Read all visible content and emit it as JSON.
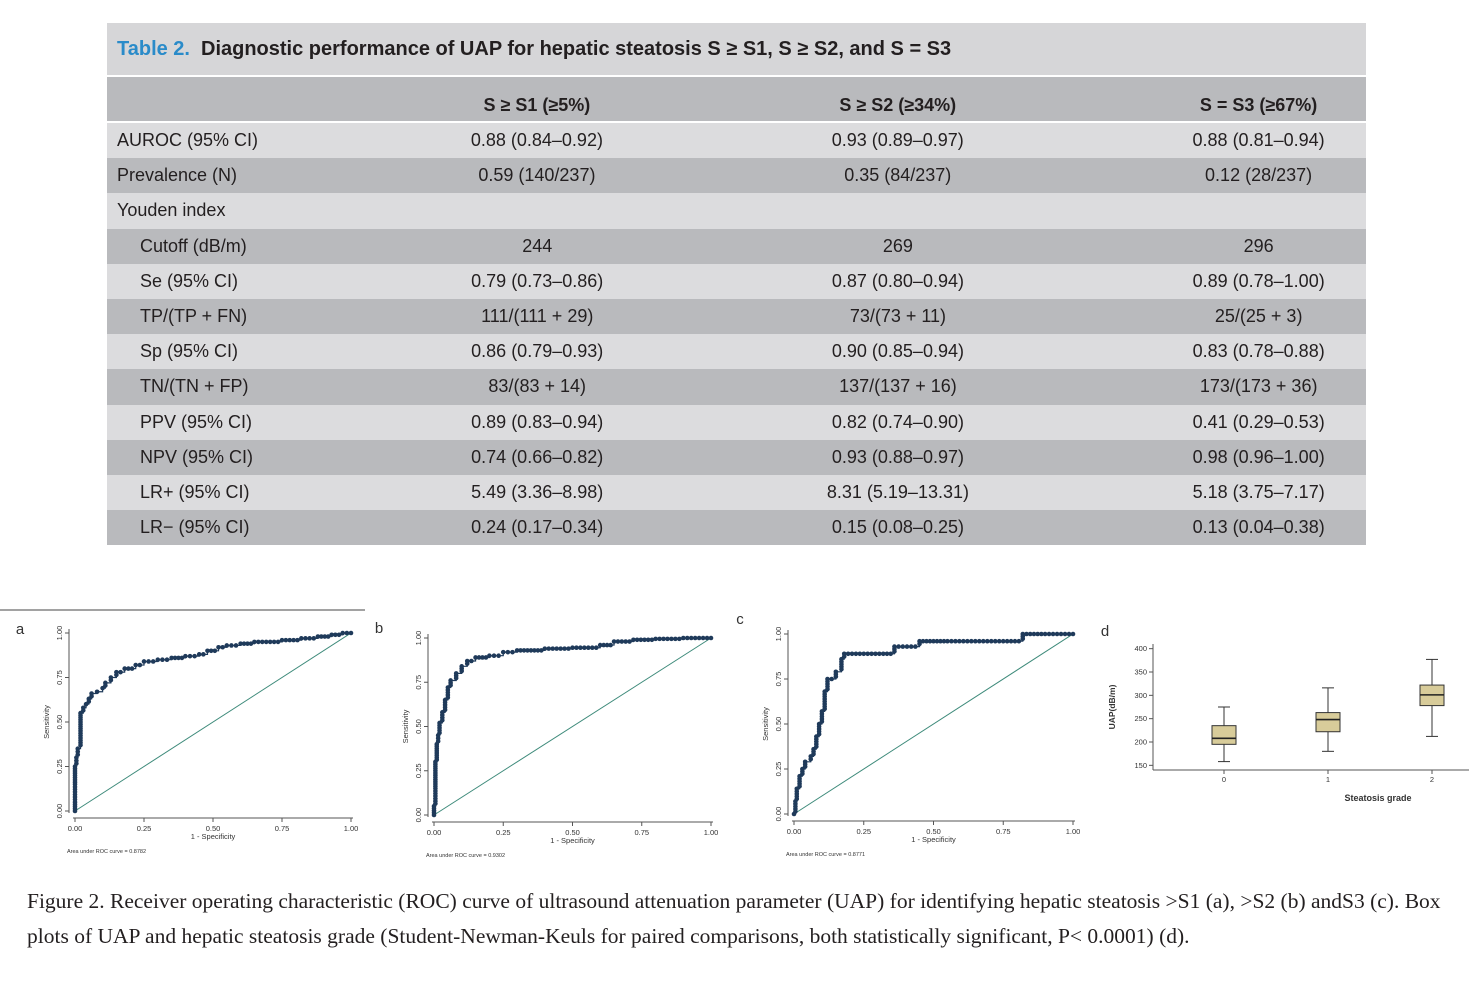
{
  "table": {
    "label": "Table 2.",
    "title": "Diagnostic performance of UAP for hepatic steatosis S ≥ S1, S ≥ S2, and S = S3",
    "headers": [
      "",
      "S ≥ S1 (≥5%)",
      "S ≥ S2 (≥34%)",
      "S = S3 (≥67%)"
    ],
    "rows": [
      {
        "label": "AUROC (95% CI)",
        "indent": false,
        "values": [
          "0.88 (0.84–0.92)",
          "0.93 (0.89–0.97)",
          "0.88 (0.81–0.94)"
        ]
      },
      {
        "label": "Prevalence (N)",
        "indent": false,
        "values": [
          "0.59 (140/237)",
          "0.35 (84/237)",
          "0.12 (28/237)"
        ]
      },
      {
        "label": "Youden index",
        "indent": false,
        "values": [
          "",
          "",
          ""
        ]
      },
      {
        "label": "Cutoff (dB/m)",
        "indent": true,
        "values": [
          "244",
          "269",
          "296"
        ]
      },
      {
        "label": "Se (95% CI)",
        "indent": true,
        "values": [
          "0.79 (0.73–0.86)",
          "0.87 (0.80–0.94)",
          "0.89 (0.78–1.00)"
        ]
      },
      {
        "label": "TP/(TP + FN)",
        "indent": true,
        "values": [
          "111/(111 + 29)",
          "73/(73 + 11)",
          "25/(25 + 3)"
        ]
      },
      {
        "label": "Sp (95% CI)",
        "indent": true,
        "values": [
          "0.86 (0.79–0.93)",
          "0.90 (0.85–0.94)",
          "0.83 (0.78–0.88)"
        ]
      },
      {
        "label": "TN/(TN + FP)",
        "indent": true,
        "values": [
          "83/(83 + 14)",
          "137/(137 + 16)",
          "173/(173 + 36)"
        ]
      },
      {
        "label": "PPV (95% CI)",
        "indent": true,
        "values": [
          "0.89 (0.83–0.94)",
          "0.82 (0.74–0.90)",
          "0.41 (0.29–0.53)"
        ]
      },
      {
        "label": "NPV (95% CI)",
        "indent": true,
        "values": [
          "0.74 (0.66–0.82)",
          "0.93 (0.88–0.97)",
          "0.98 (0.96–1.00)"
        ]
      },
      {
        "label": "LR+ (95% CI)",
        "indent": true,
        "values": [
          "5.49 (3.36–8.98)",
          "8.31 (5.19–13.31)",
          "5.18 (3.75–7.17)"
        ]
      },
      {
        "label": "LR− (95% CI)",
        "indent": true,
        "values": [
          "0.24 (0.17–0.34)",
          "0.15 (0.08–0.25)",
          "0.13 (0.04–0.38)"
        ]
      }
    ],
    "colors": {
      "title_label": "#2a8bc9",
      "light_row": "#dcdcde",
      "dark_row": "#b9babd"
    }
  },
  "chart_data": [
    {
      "type": "line",
      "panel": "a",
      "xlabel": "1 - Specificity",
      "ylabel": "Sensitivity",
      "xlim": [
        0,
        1
      ],
      "ylim": [
        0,
        1
      ],
      "xticks": [
        "0.00",
        "0.25",
        "0.50",
        "0.75",
        "1.00"
      ],
      "yticks": [
        "0.00",
        "0.25",
        "0.50",
        "0.75",
        "1.00"
      ],
      "note": "Area under ROC curve = 0.8782",
      "curve_color": "#1f3a5a",
      "reference_color": "#3d8a7a",
      "series": [
        {
          "values": [
            [
              0,
              0
            ],
            [
              0,
              0.05
            ],
            [
              0,
              0.15
            ],
            [
              0,
              0.25
            ],
            [
              0.005,
              0.3
            ],
            [
              0.01,
              0.35
            ],
            [
              0.02,
              0.37
            ],
            [
              0.02,
              0.45
            ],
            [
              0.02,
              0.55
            ],
            [
              0.03,
              0.58
            ],
            [
              0.04,
              0.6
            ],
            [
              0.05,
              0.63
            ],
            [
              0.06,
              0.66
            ],
            [
              0.08,
              0.67
            ],
            [
              0.1,
              0.69
            ],
            [
              0.11,
              0.72
            ],
            [
              0.13,
              0.75
            ],
            [
              0.15,
              0.78
            ],
            [
              0.18,
              0.8
            ],
            [
              0.22,
              0.82
            ],
            [
              0.25,
              0.84
            ],
            [
              0.3,
              0.85
            ],
            [
              0.35,
              0.86
            ],
            [
              0.4,
              0.87
            ],
            [
              0.45,
              0.88
            ],
            [
              0.48,
              0.9
            ],
            [
              0.52,
              0.92
            ],
            [
              0.55,
              0.93
            ],
            [
              0.6,
              0.94
            ],
            [
              0.65,
              0.95
            ],
            [
              0.75,
              0.96
            ],
            [
              0.82,
              0.97
            ],
            [
              0.88,
              0.98
            ],
            [
              0.93,
              0.99
            ],
            [
              0.97,
              1.0
            ],
            [
              1,
              1
            ]
          ]
        },
        {
          "values": [
            [
              0,
              0
            ],
            [
              1,
              1
            ]
          ]
        }
      ]
    },
    {
      "type": "line",
      "panel": "b",
      "xlabel": "1 - Specificity",
      "ylabel": "Sensitivity",
      "xlim": [
        0,
        1
      ],
      "ylim": [
        0,
        1
      ],
      "xticks": [
        "0.00",
        "0.25",
        "0.50",
        "0.75",
        "1.00"
      ],
      "yticks": [
        "0.00",
        "0.25",
        "0.50",
        "0.75",
        "1.00"
      ],
      "note": "Area under ROC curve = 0.9302",
      "curve_color": "#1f3a5a",
      "reference_color": "#3d8a7a",
      "series": [
        {
          "values": [
            [
              0,
              0
            ],
            [
              0,
              0.05
            ],
            [
              0.005,
              0.15
            ],
            [
              0.005,
              0.3
            ],
            [
              0.01,
              0.4
            ],
            [
              0.015,
              0.45
            ],
            [
              0.02,
              0.52
            ],
            [
              0.03,
              0.58
            ],
            [
              0.04,
              0.65
            ],
            [
              0.05,
              0.72
            ],
            [
              0.06,
              0.76
            ],
            [
              0.08,
              0.8
            ],
            [
              0.1,
              0.84
            ],
            [
              0.12,
              0.87
            ],
            [
              0.15,
              0.89
            ],
            [
              0.2,
              0.9
            ],
            [
              0.25,
              0.92
            ],
            [
              0.3,
              0.93
            ],
            [
              0.4,
              0.94
            ],
            [
              0.5,
              0.945
            ],
            [
              0.6,
              0.96
            ],
            [
              0.65,
              0.98
            ],
            [
              0.72,
              0.99
            ],
            [
              0.8,
              0.995
            ],
            [
              0.9,
              1.0
            ],
            [
              1,
              1
            ]
          ]
        },
        {
          "values": [
            [
              0,
              0
            ],
            [
              1,
              1
            ]
          ]
        }
      ]
    },
    {
      "type": "line",
      "panel": "c",
      "xlabel": "1 - Specificity",
      "ylabel": "Sensitivity",
      "xlim": [
        0,
        1
      ],
      "ylim": [
        0,
        1
      ],
      "xticks": [
        "0.00",
        "0.25",
        "0.50",
        "0.75",
        "1.00"
      ],
      "yticks": [
        "0.00",
        "0.25",
        "0.50",
        "0.75",
        "1.00"
      ],
      "note": "Area under ROC curve = 0.8771",
      "curve_color": "#1f3a5a",
      "reference_color": "#3d8a7a",
      "series": [
        {
          "values": [
            [
              0,
              0
            ],
            [
              0.005,
              0.07
            ],
            [
              0.01,
              0.14
            ],
            [
              0.02,
              0.21
            ],
            [
              0.03,
              0.25
            ],
            [
              0.04,
              0.29
            ],
            [
              0.06,
              0.32
            ],
            [
              0.07,
              0.36
            ],
            [
              0.08,
              0.43
            ],
            [
              0.09,
              0.5
            ],
            [
              0.1,
              0.57
            ],
            [
              0.11,
              0.68
            ],
            [
              0.12,
              0.75
            ],
            [
              0.15,
              0.79
            ],
            [
              0.17,
              0.86
            ],
            [
              0.18,
              0.89
            ],
            [
              0.25,
              0.89
            ],
            [
              0.32,
              0.89
            ],
            [
              0.36,
              0.93
            ],
            [
              0.42,
              0.93
            ],
            [
              0.45,
              0.96
            ],
            [
              0.55,
              0.96
            ],
            [
              0.65,
              0.96
            ],
            [
              0.75,
              0.96
            ],
            [
              0.82,
              1.0
            ],
            [
              0.9,
              1.0
            ],
            [
              1,
              1
            ]
          ]
        },
        {
          "values": [
            [
              0,
              0
            ],
            [
              1,
              1
            ]
          ]
        }
      ]
    },
    {
      "type": "box",
      "panel": "d",
      "xlabel": "Steatosis grade",
      "ylabel": "UAP(dB/m)",
      "ylim": [
        140,
        410
      ],
      "yticks": [
        "150",
        "200",
        "250",
        "300",
        "350",
        "400"
      ],
      "categories": [
        "0",
        "1",
        "2"
      ],
      "box_color": "#d8cc9a",
      "boxes": [
        {
          "category": "0",
          "min": 158,
          "q1": 195,
          "median": 208,
          "q3": 235,
          "max": 275
        },
        {
          "category": "1",
          "min": 180,
          "q1": 222,
          "median": 248,
          "q3": 263,
          "max": 316
        },
        {
          "category": "2",
          "min": 212,
          "q1": 278,
          "median": 301,
          "q3": 322,
          "max": 377
        }
      ]
    }
  ],
  "caption": {
    "text": "Figure 2. Receiver operating characteristic (ROC) curve of ultrasound attenuation parameter (UAP) for identifying hepatic steatosis >S1 (a), >S2 (b) andS3 (c). Box plots of UAP and hepatic steatosis grade (Student-Newman-Keuls for paired comparisons, both statistically significant, P< 0.0001) (d)."
  }
}
